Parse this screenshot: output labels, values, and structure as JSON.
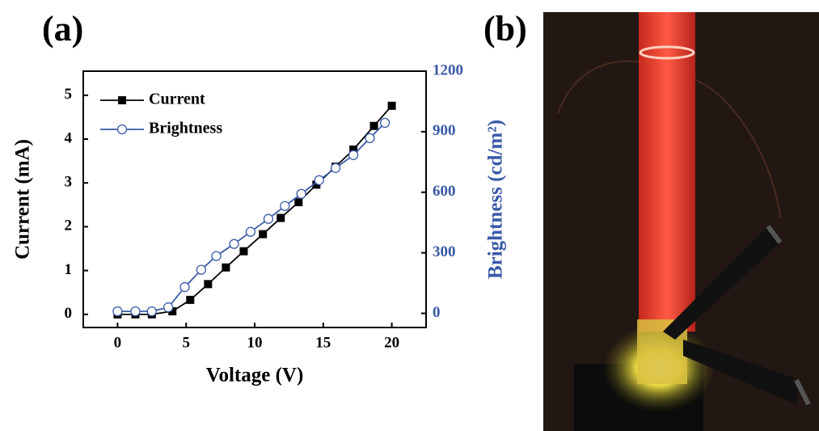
{
  "panel_labels": [
    "(a)",
    "(b)"
  ],
  "chart_data": {
    "type": "line",
    "xlabel": "Voltage (V)",
    "ylabel": "Current (mA)",
    "y2label": "Brightness (cd/m²)",
    "xlim": [
      -2.5,
      22.5
    ],
    "xticks": [
      0,
      5,
      10,
      15,
      20
    ],
    "ylim": [
      -0.3,
      5.55
    ],
    "yticks": [
      0,
      1,
      2,
      3,
      4,
      5
    ],
    "y2lim": [
      -70,
      1200
    ],
    "y2ticks": [
      0,
      300,
      600,
      900,
      1200
    ],
    "legend": "upper left",
    "series": [
      {
        "name": "Current",
        "color": "#000000",
        "marker": "square",
        "x": [
          0,
          1.3,
          2.5,
          4,
          5.3,
          6.6,
          7.9,
          9.2,
          10.6,
          11.9,
          13.2,
          14.5,
          15.9,
          17.2,
          18.7,
          20
        ],
        "values": [
          0,
          0,
          0,
          0.07,
          0.33,
          0.69,
          1.07,
          1.44,
          1.83,
          2.2,
          2.56,
          2.96,
          3.37,
          3.76,
          4.3,
          4.76
        ]
      },
      {
        "name": "Brightness",
        "color": "#3a5aa8",
        "marker": "open-circle",
        "axis": "y2",
        "x": [
          0,
          1.3,
          2.5,
          3.7,
          4.9,
          6.1,
          7.2,
          8.5,
          9.7,
          11,
          12.2,
          13.4,
          14.7,
          15.9,
          17.2,
          18.4,
          19.5
        ],
        "values": [
          10,
          10,
          10,
          30,
          130,
          216,
          284,
          344,
          404,
          468,
          532,
          592,
          660,
          720,
          784,
          868,
          944
        ]
      }
    ]
  }
}
